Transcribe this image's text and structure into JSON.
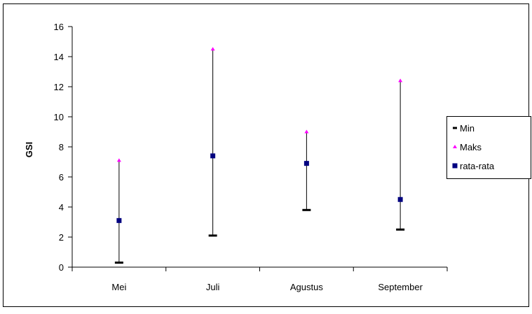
{
  "chart_data": {
    "type": "scatter",
    "title": "",
    "xlabel": "",
    "ylabel": "GSI",
    "ylim": [
      0,
      16
    ],
    "yticks": [
      "0",
      "2",
      "4",
      "6",
      "8",
      "10",
      "12",
      "14",
      "16"
    ],
    "categories": [
      "Mei",
      "Juli",
      "Agustus",
      "September"
    ],
    "series": [
      {
        "name": "Min",
        "values": [
          0.3,
          2.1,
          3.8,
          2.5
        ],
        "color": "#000000",
        "marker": "dash"
      },
      {
        "name": "Maks",
        "values": [
          7.1,
          14.5,
          9.0,
          12.4
        ],
        "color": "#ff00ff",
        "marker": "triangle"
      },
      {
        "name": "rata-rata",
        "values": [
          3.1,
          7.4,
          6.9,
          4.5
        ],
        "color": "#000080",
        "marker": "square"
      }
    ],
    "grid": false,
    "legend_position": "right",
    "range_lines": true
  }
}
